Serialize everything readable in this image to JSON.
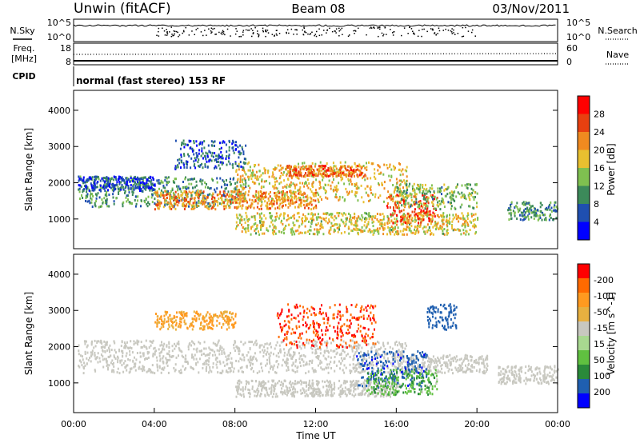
{
  "header": {
    "station": "Unwin (fitACF)",
    "beam": "Beam 08",
    "date": "03/Nov/2011"
  },
  "left_labels": {
    "nsky": "N.Sky",
    "freq": "Freq.",
    "freq_unit": "[MHz]",
    "cpid": "CPID"
  },
  "right_labels": {
    "nsearch": "N.Search",
    "nave": "Nave"
  },
  "mode_text": "normal (fast stereo) 153 RF",
  "colors": {
    "power_scale": [
      "#0000ff",
      "#1f4fb0",
      "#3c8a5a",
      "#7fc050",
      "#e8c030",
      "#f08a20",
      "#e84010",
      "#ff0000"
    ],
    "velocity_scale": [
      "#ff0000",
      "#ff6a00",
      "#ff9a20",
      "#e8b040",
      "#c8c8c0",
      "#a8d890",
      "#60c040",
      "#2a8a3a",
      "#1f5fb0",
      "#0000ff"
    ],
    "ground_scatter": "#c8c8c0"
  },
  "chart_data": [
    {
      "type": "line",
      "name": "noise-panel",
      "left_axis": {
        "label": "N.Sky",
        "ticks": [
          "10^5",
          "10^0"
        ]
      },
      "right_axis": {
        "label": "N.Search",
        "ticks": [
          "10^5",
          "10^0"
        ]
      }
    },
    {
      "type": "line",
      "name": "frequency-panel",
      "left_axis": {
        "label": "Freq. [MHz]",
        "ticks": [
          "18",
          "8"
        ]
      },
      "right_axis": {
        "label": "Nave",
        "ticks": [
          "60",
          "0"
        ]
      }
    },
    {
      "type": "heatmap",
      "name": "power",
      "ylabel": "Slant Range [km]",
      "ylim": [
        180,
        4550
      ],
      "yticks": [
        "1000",
        "2000",
        "3000",
        "4000"
      ],
      "colorbar": {
        "label": "Power [dB]",
        "ticks": [
          "4",
          "8",
          "12",
          "16",
          "20",
          "24",
          "28"
        ],
        "range": [
          0,
          30
        ]
      },
      "regions": [
        {
          "t0": 0.2,
          "t1": 8.5,
          "r0": 1350,
          "r1": 2200,
          "level": 10
        },
        {
          "t0": 4.0,
          "t1": 12.0,
          "r0": 1300,
          "r1": 1800,
          "level": 20
        },
        {
          "t0": 8.0,
          "t1": 16.5,
          "r0": 1500,
          "r1": 2600,
          "level": 17
        },
        {
          "t0": 10.5,
          "t1": 14.5,
          "r0": 2200,
          "r1": 2500,
          "level": 22
        },
        {
          "t0": 8.0,
          "t1": 20.0,
          "r0": 600,
          "r1": 1200,
          "level": 16
        },
        {
          "t0": 15.5,
          "t1": 18.0,
          "r0": 900,
          "r1": 1700,
          "level": 24
        },
        {
          "t0": 16.0,
          "t1": 20.0,
          "r0": 1300,
          "r1": 2000,
          "level": 12
        },
        {
          "t0": 21.5,
          "t1": 24.0,
          "r0": 1000,
          "r1": 1500,
          "level": 10
        },
        {
          "t0": 5.0,
          "t1": 8.5,
          "r0": 2400,
          "r1": 3200,
          "level": 6
        },
        {
          "t0": 0.2,
          "t1": 4.0,
          "r0": 1800,
          "r1": 2200,
          "level": 5
        }
      ]
    },
    {
      "type": "heatmap",
      "name": "velocity",
      "xlabel": "Time UT",
      "ylabel": "Slant Range [km]",
      "xlim": [
        0,
        24
      ],
      "ylim": [
        180,
        4550
      ],
      "xticks": [
        "00:00",
        "04:00",
        "08:00",
        "12:00",
        "16:00",
        "20:00",
        "00:00"
      ],
      "yticks": [
        "1000",
        "2000",
        "3000",
        "4000"
      ],
      "colorbar": {
        "label": "Velocity [m s^-1]",
        "ticks": [
          "200",
          "100",
          "50",
          "15",
          "-15",
          "-50",
          "-100",
          "-200"
        ],
        "range": [
          -250,
          250
        ]
      },
      "regions": [
        {
          "t0": 0.2,
          "t1": 16.5,
          "r0": 1300,
          "r1": 2200,
          "velocity": 0,
          "ground_scatter": true
        },
        {
          "t0": 8.0,
          "t1": 16.0,
          "r0": 650,
          "r1": 1100,
          "velocity": 0,
          "ground_scatter": true
        },
        {
          "t0": 16.0,
          "t1": 20.5,
          "r0": 1300,
          "r1": 1800,
          "velocity": 0,
          "ground_scatter": true
        },
        {
          "t0": 21.0,
          "t1": 24.0,
          "r0": 1000,
          "r1": 1500,
          "velocity": 0,
          "ground_scatter": true
        },
        {
          "t0": 14.0,
          "t1": 17.5,
          "r0": 900,
          "r1": 1900,
          "velocity": 180
        },
        {
          "t0": 10.0,
          "t1": 15.0,
          "r0": 2000,
          "r1": 3200,
          "velocity": -200
        },
        {
          "t0": 4.0,
          "t1": 8.0,
          "r0": 2500,
          "r1": 3000,
          "velocity": -60
        },
        {
          "t0": 14.5,
          "t1": 18.0,
          "r0": 700,
          "r1": 1400,
          "velocity": 40
        },
        {
          "t0": 17.5,
          "t1": 19.0,
          "r0": 2500,
          "r1": 3200,
          "velocity": 150
        }
      ]
    }
  ]
}
